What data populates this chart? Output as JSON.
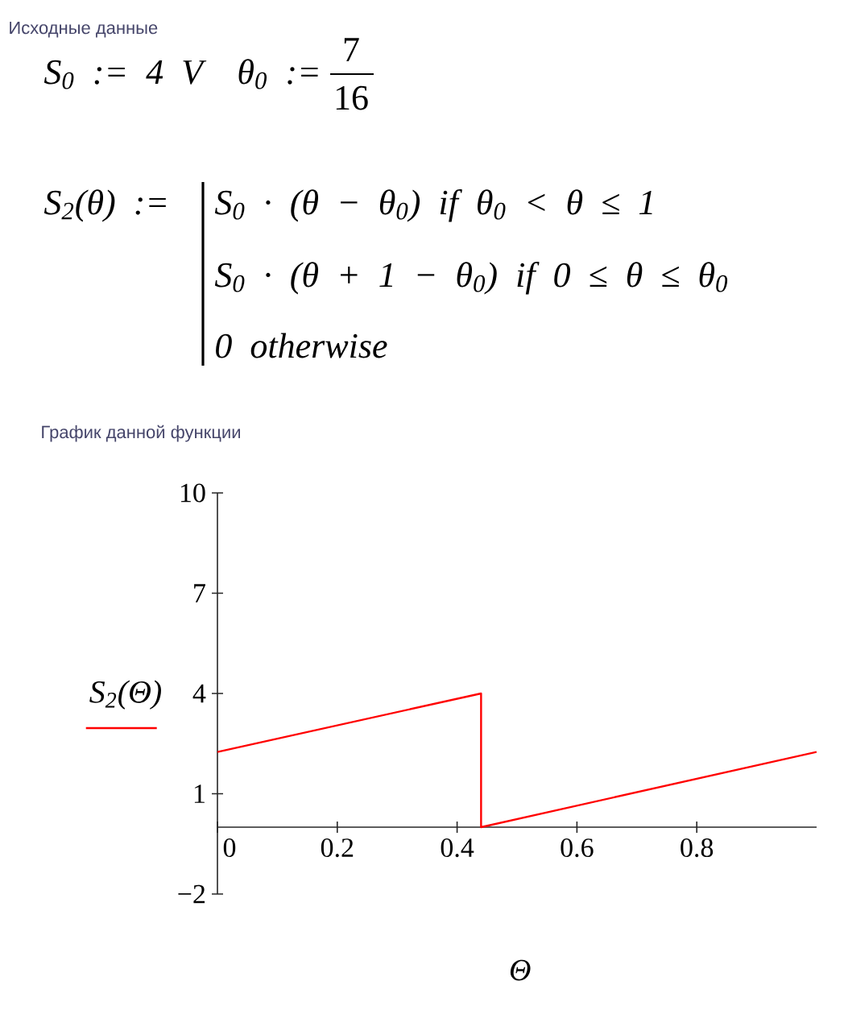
{
  "chart_data": {
    "type": "line",
    "title": "График данной функции",
    "annotations": [
      "Исходные данные",
      "S$_{0}$ := 4 V",
      "θ$_{0}$ :=",
      "7",
      "16",
      "S$_{2}$(θ) :=",
      "S$_{0}$ · (θ − θ$_{0}$) if θ$_{0}$ < θ ≤ 1",
      "S$_{0}$ · (θ + 1 − θ$_{0}$) if 0 ≤ θ ≤ θ$_{0}$",
      "0 otherwise"
    ],
    "xlabel": "Θ",
    "x": [
      0,
      0.44,
      0.44,
      1
    ],
    "series": [
      {
        "name": "S$_{2}$(Θ)",
        "color": "#ff0000",
        "values": [
          2.25,
          4,
          0,
          2.25
        ]
      }
    ],
    "xlim": [
      0,
      1
    ],
    "ylim": [
      -2,
      10
    ],
    "xticks": [
      0,
      0.2,
      0.4,
      0.6,
      0.8
    ],
    "yticks": [
      {
        "value": -2,
        "label": "−2"
      },
      1,
      4,
      7,
      10
    ],
    "legend": "left",
    "line_style": "solid"
  }
}
